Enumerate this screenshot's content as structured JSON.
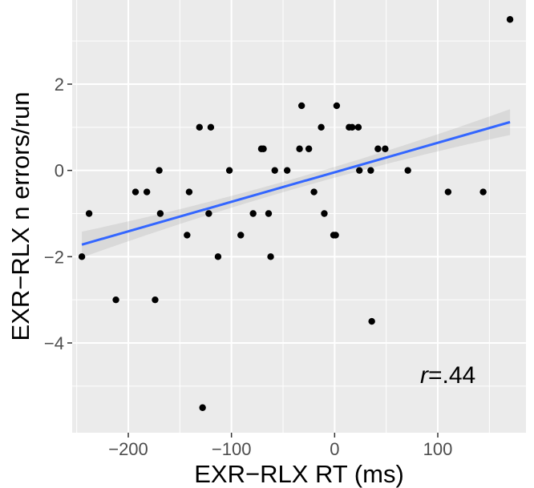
{
  "chart_data": {
    "type": "scatter",
    "title": "",
    "xlabel": "EXR−RLX RT (ms)",
    "ylabel": "EXR−RLX n errors/run",
    "xlim": [
      -260,
      190
    ],
    "ylim": [
      -5.8,
      3.9
    ],
    "x_ticks": [
      -200,
      -100,
      0,
      100
    ],
    "x_tick_labels": [
      "−200",
      "−100",
      "0",
      "100"
    ],
    "y_ticks": [
      -4,
      -2,
      0,
      2
    ],
    "y_tick_labels": [
      "−4",
      "−2",
      "0",
      "2"
    ],
    "grid": true,
    "annotation": {
      "r_symbol": "r",
      "r_value": "=.44"
    },
    "points": [
      {
        "x": 170,
        "y": 3.5
      },
      {
        "x": -245,
        "y": -2.0
      },
      {
        "x": -238,
        "y": -1.0
      },
      {
        "x": -212,
        "y": -3.0
      },
      {
        "x": -193,
        "y": -0.5
      },
      {
        "x": -182,
        "y": -0.5
      },
      {
        "x": -174,
        "y": -3.0
      },
      {
        "x": -170,
        "y": 0.0
      },
      {
        "x": -169,
        "y": -1.0
      },
      {
        "x": -143,
        "y": -1.5
      },
      {
        "x": -141,
        "y": -0.5
      },
      {
        "x": -131,
        "y": 1.0
      },
      {
        "x": -128,
        "y": -5.5
      },
      {
        "x": -122,
        "y": -1.0
      },
      {
        "x": -120,
        "y": 1.0
      },
      {
        "x": -113,
        "y": -2.0
      },
      {
        "x": -102,
        "y": 0.0
      },
      {
        "x": -91,
        "y": -1.5
      },
      {
        "x": -79,
        "y": -1.0
      },
      {
        "x": -71,
        "y": 0.5
      },
      {
        "x": -69,
        "y": 0.5
      },
      {
        "x": -64,
        "y": -1.0
      },
      {
        "x": -62,
        "y": -2.0
      },
      {
        "x": -58,
        "y": 0.0
      },
      {
        "x": -46,
        "y": 0.0
      },
      {
        "x": -34,
        "y": 0.5
      },
      {
        "x": -32,
        "y": 1.5
      },
      {
        "x": -25,
        "y": 0.5
      },
      {
        "x": -20,
        "y": -0.5
      },
      {
        "x": -13,
        "y": 1.0
      },
      {
        "x": -10,
        "y": -1.0
      },
      {
        "x": -1,
        "y": -1.5
      },
      {
        "x": 1,
        "y": -1.5
      },
      {
        "x": 2,
        "y": 1.5
      },
      {
        "x": 14,
        "y": 1.0
      },
      {
        "x": 17,
        "y": 1.0
      },
      {
        "x": 23,
        "y": 1.0
      },
      {
        "x": 24,
        "y": 0.0
      },
      {
        "x": 35,
        "y": 0.0
      },
      {
        "x": 36,
        "y": -3.5
      },
      {
        "x": 42,
        "y": 0.5
      },
      {
        "x": 49,
        "y": 0.5
      },
      {
        "x": 71,
        "y": 0.0
      },
      {
        "x": 110,
        "y": -0.5
      },
      {
        "x": 144,
        "y": -0.5
      }
    ],
    "regression": {
      "x": [
        -245,
        170
      ],
      "y": [
        -1.72,
        1.12
      ],
      "ci_half_width_ends": 0.3,
      "ci_half_width_center": 0.12,
      "line_color": "#3366ff",
      "band_color": "#999999"
    },
    "colors": {
      "panel_background": "#ebebeb",
      "grid": "#ffffff",
      "point": "#000000"
    }
  }
}
